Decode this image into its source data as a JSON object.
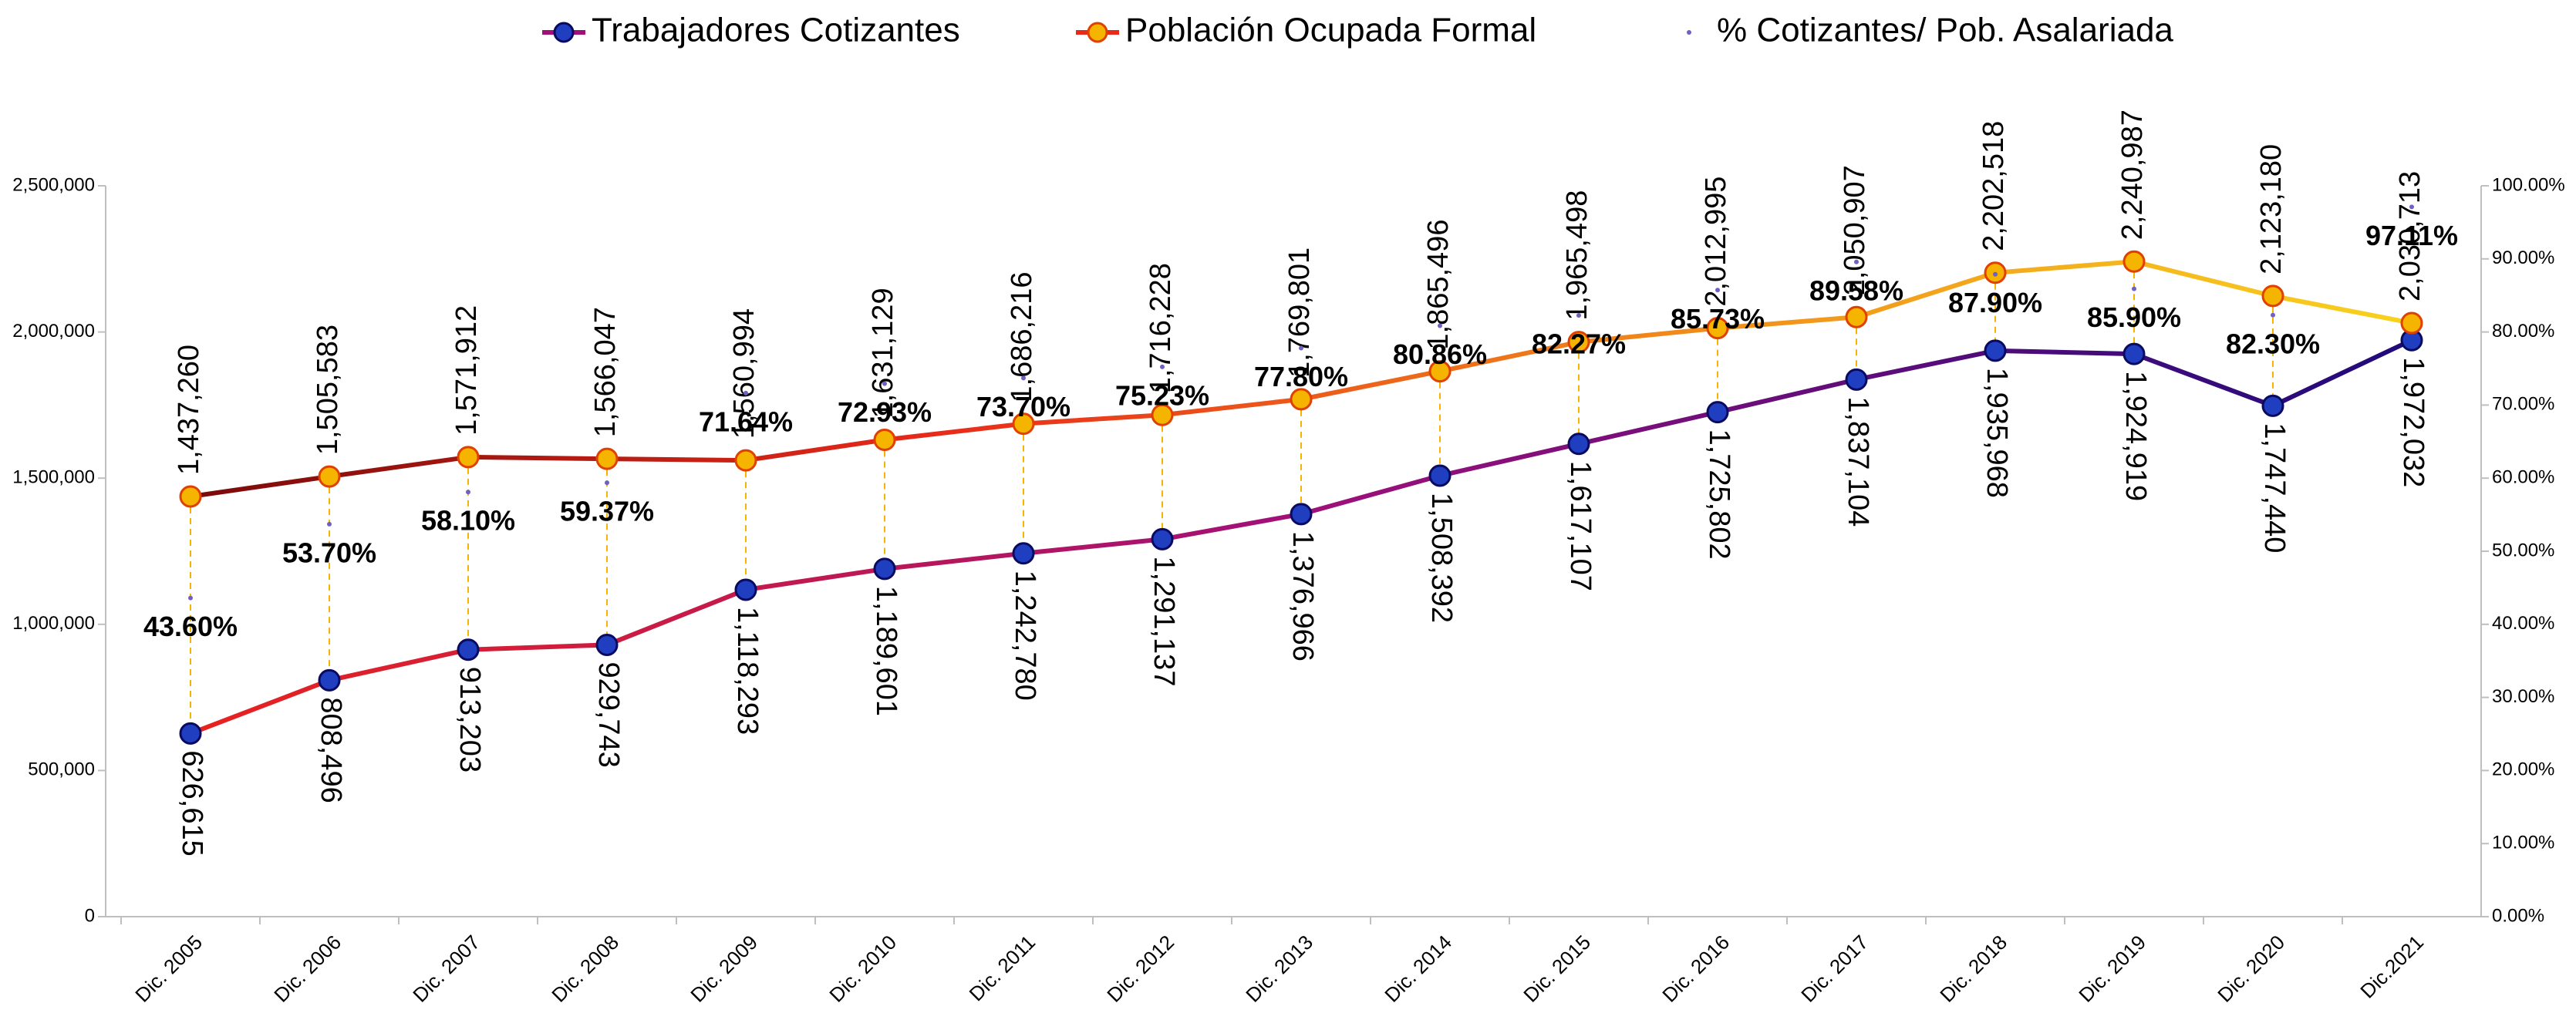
{
  "chart_data": {
    "type": "line",
    "categories": [
      "Dic. 2005",
      "Dic. 2006",
      "Dic. 2007",
      "Dic. 2008",
      "Dic. 2009",
      "Dic. 2010",
      "Dic. 2011",
      "Dic. 2012",
      "Dic. 2013",
      "Dic. 2014",
      "Dic. 2015",
      "Dic. 2016",
      "Dic. 2017",
      "Dic. 2018",
      "Dic. 2019",
      "Dic. 2020",
      "Dic.2021"
    ],
    "series": [
      {
        "name": "Trabajadores Cotizantes",
        "color": "#1f3fc0",
        "line_colors": [
          "#e8231f",
          "#a0107a",
          "#1f0a7a"
        ],
        "label_color": "#1f3864",
        "values": [
          626615,
          808496,
          913203,
          929743,
          1118293,
          1189601,
          1242780,
          1291137,
          1376966,
          1508392,
          1617107,
          1725802,
          1837104,
          1935968,
          1924919,
          1747440,
          1972032
        ],
        "value_labels": [
          "626,615",
          "808,496",
          "913,203",
          "929,743",
          "1,118,293",
          "1,189,601",
          "1,242,780",
          "1,291,137",
          "1,376,966",
          "1,508,392",
          "1,617,107",
          "1,725,802",
          "1,837,104",
          "1,935,968",
          "1,924,919",
          "1,747,440",
          "1,972,032"
        ]
      },
      {
        "name": "Población Ocupada Formal",
        "color": "#f5b400",
        "line_colors": [
          "#7a0a0a",
          "#e82a1a",
          "#f08a1a",
          "#f8d21e"
        ],
        "label_color": "#e87722",
        "values": [
          1437260,
          1505583,
          1571912,
          1566047,
          1560994,
          1631129,
          1686216,
          1716228,
          1769801,
          1865496,
          1965498,
          2012995,
          2050907,
          2202518,
          2240987,
          2123180,
          2030713
        ],
        "value_labels": [
          "1,437,260",
          "1,505,583",
          "1,571,912",
          "1,566,047",
          "1,560,994",
          "1,631,129",
          "1,686,216",
          "1,716,228",
          "1,769,801",
          "1,865,496",
          "1,965,498",
          "2,012,995",
          "2,050,907",
          "2,202,518",
          "2,240,987",
          "2,123,180",
          "2,030,713"
        ]
      },
      {
        "name": "% Cotizantes/ Pob. Asalariada",
        "color": "#7060c0",
        "axis": "y2",
        "label_color": "#000000",
        "values": [
          43.6,
          53.7,
          58.1,
          59.37,
          71.64,
          72.93,
          73.7,
          75.23,
          77.8,
          80.86,
          82.27,
          85.73,
          89.58,
          87.9,
          85.9,
          82.3,
          97.11
        ],
        "value_labels": [
          "43.60%",
          "53.70%",
          "58.10%",
          "59.37%",
          "71.64%",
          "72.93%",
          "73.70%",
          "75.23%",
          "77.80%",
          "80.86%",
          "82.27%",
          "85.73%",
          "89.58%",
          "87.90%",
          "85.90%",
          "82.30%",
          "97.11%"
        ]
      }
    ],
    "ylim": [
      0,
      2500000
    ],
    "yticks": [
      0,
      {
        "value": 500000,
        "label": "500,000"
      },
      {
        "value": 1000000,
        "label": "1,000,000"
      },
      {
        "value": 1500000,
        "label": "1,500,000"
      },
      {
        "value": 2000000,
        "label": "2,000,000"
      },
      {
        "value": 2500000,
        "label": "2,500,000"
      }
    ],
    "y2lim": [
      0,
      100
    ],
    "y2ticks": [
      {
        "value": 0,
        "label": "0.00%"
      },
      {
        "value": 10,
        "label": "10.00%"
      },
      {
        "value": 20,
        "label": "20.00%"
      },
      {
        "value": 30,
        "label": "30.00%"
      },
      {
        "value": 40,
        "label": "40.00%"
      },
      {
        "value": 50,
        "label": "50.00%"
      },
      {
        "value": 60,
        "label": "60.00%"
      },
      {
        "value": 70,
        "label": "70.00%"
      },
      {
        "value": 80,
        "label": "80.00%"
      },
      {
        "value": 90,
        "label": "90.00%"
      },
      {
        "value": 100,
        "label": "100.00%"
      }
    ],
    "legend": "top",
    "grid": false
  }
}
